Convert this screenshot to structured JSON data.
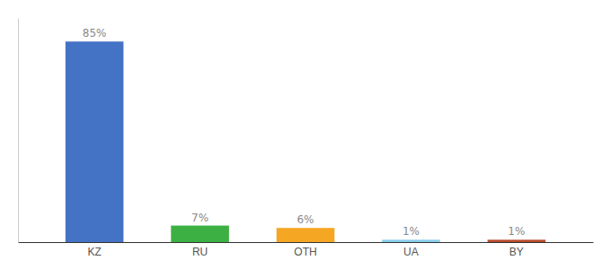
{
  "chart_data": {
    "type": "bar",
    "categories": [
      "KZ",
      "RU",
      "OTH",
      "UA",
      "BY"
    ],
    "values": [
      85,
      7,
      6,
      1,
      1
    ],
    "value_labels": [
      "85%",
      "7%",
      "6%",
      "1%",
      "1%"
    ],
    "colors": [
      "#4472c4",
      "#3cb043",
      "#f5a623",
      "#87ceeb",
      "#b94a2c"
    ],
    "ylim": [
      0,
      95
    ],
    "data_labels": true,
    "tick_labels": "x"
  }
}
